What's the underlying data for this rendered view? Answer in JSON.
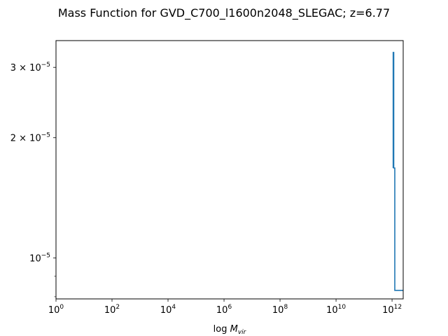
{
  "chart_data": {
    "type": "line",
    "title": "Mass Function for GVD_C700_l1600n2048_SLEGAC; z=6.77",
    "xlabel": "log M_vir",
    "ylabel": "",
    "xscale": "log",
    "yscale": "log",
    "xlim": [
      1,
      2500000000000.0
    ],
    "ylim": [
      7.9e-06,
      3.5e-05
    ],
    "grid": false,
    "legend": "none",
    "x_ticks": [
      {
        "value": 1,
        "base": "10",
        "exp": "0"
      },
      {
        "value": 100,
        "base": "10",
        "exp": "2"
      },
      {
        "value": 10000,
        "base": "10",
        "exp": "4"
      },
      {
        "value": 1000000,
        "base": "10",
        "exp": "6"
      },
      {
        "value": 100000000,
        "base": "10",
        "exp": "8"
      },
      {
        "value": 10000000000,
        "base": "10",
        "exp": "10"
      },
      {
        "value": 1000000000000,
        "base": "10",
        "exp": "12"
      }
    ],
    "y_ticks": [
      {
        "value": 3e-05,
        "mant": "3",
        "base": "10",
        "exp": "−5"
      },
      {
        "value": 2e-05,
        "mant": "2",
        "base": "10",
        "exp": "−5"
      },
      {
        "value": 1e-05,
        "mant": "",
        "base": "10",
        "exp": "−5"
      }
    ],
    "y_minor_ticks": [
      9e-06,
      8e-06
    ],
    "series": [
      {
        "color": "#1f77b4",
        "x": [
          1100000000000.0,
          1100000000000.0,
          1150000000000.0,
          1150000000000.0,
          1250000000000.0,
          1250000000000.0,
          2500000000000.0
        ],
        "y": [
          1.68e-05,
          3.27e-05,
          3.27e-05,
          1.68e-05,
          1.68e-05,
          8.3e-06,
          8.3e-06
        ]
      }
    ]
  }
}
